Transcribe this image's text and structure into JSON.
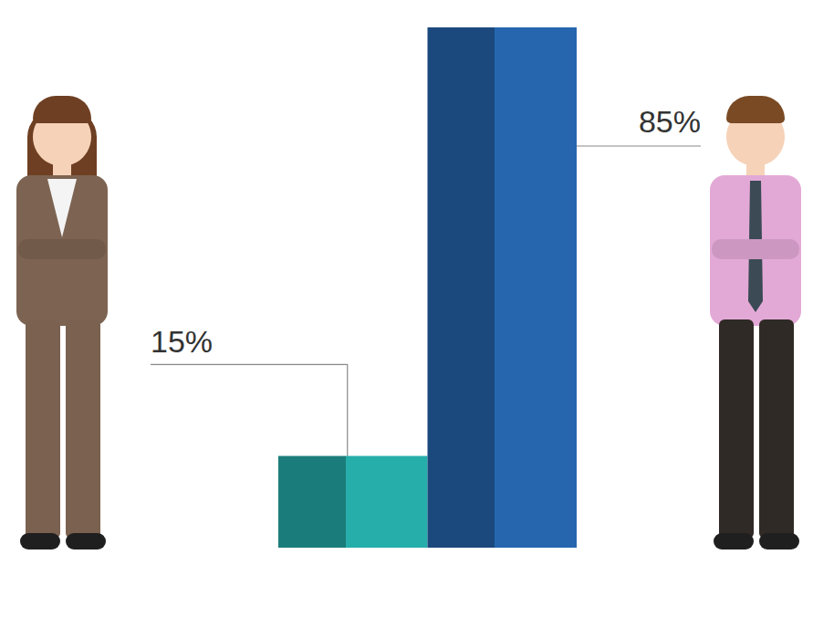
{
  "chart_data": {
    "type": "bar",
    "categories": [
      null,
      null
    ],
    "values": [
      15,
      85
    ],
    "value_labels": [
      "15%",
      "85%"
    ],
    "colors": [
      "#26aeab",
      "#2566ae"
    ],
    "data_labels": true,
    "tick_labels": false,
    "grid": false
  }
}
